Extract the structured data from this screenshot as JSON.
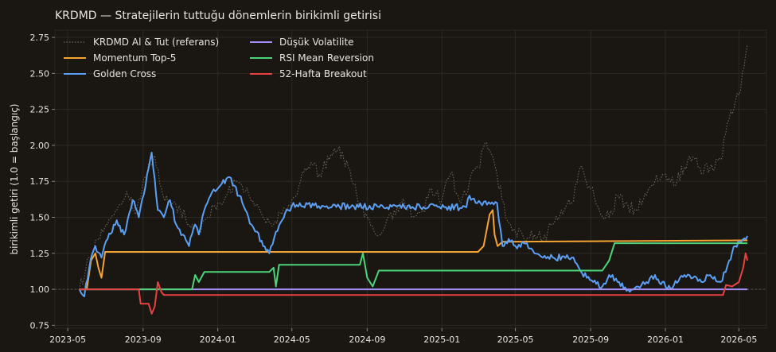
{
  "chart_data": {
    "type": "line",
    "title": "KRDMD — Stratejilerin tuttuğu dönemlerin birikimli getirisi",
    "xlabel": "",
    "ylabel": "birikimli getiri (1.0 = başlangıç)",
    "xlim": [
      "2023-04-10",
      "2026-06-15"
    ],
    "ylim": [
      0.73,
      2.8
    ],
    "yticks": [
      0.75,
      1.0,
      1.25,
      1.5,
      1.75,
      2.0,
      2.25,
      2.5,
      2.75
    ],
    "ytick_labels": [
      "0.75",
      "1.00",
      "1.25",
      "1.50",
      "1.75",
      "2.00",
      "2.25",
      "2.50",
      "2.75"
    ],
    "xticks": [
      "2023-05-01",
      "2023-09-01",
      "2024-01-01",
      "2024-05-01",
      "2024-09-01",
      "2025-01-01",
      "2025-05-01",
      "2025-09-01",
      "2026-01-01",
      "2026-05-01"
    ],
    "xtick_labels": [
      "2023-05",
      "2023-09",
      "2024-01",
      "2024-05",
      "2024-09",
      "2025-01",
      "2025-05",
      "2025-09",
      "2026-01",
      "2026-05"
    ],
    "grid": true,
    "legend_position": "top-left",
    "baseline": 1.0,
    "series": [
      {
        "name": "KRDMD Al & Tut (referans)",
        "color": "#6b645a",
        "style": "dotted",
        "x": [
          "2023-05-20",
          "2023-06-05",
          "2023-06-20",
          "2023-07-05",
          "2023-07-20",
          "2023-08-05",
          "2023-08-20",
          "2023-09-05",
          "2023-09-20",
          "2023-10-01",
          "2023-10-15",
          "2023-11-01",
          "2023-11-15",
          "2023-12-01",
          "2023-12-15",
          "2024-01-01",
          "2024-01-15",
          "2024-02-01",
          "2024-02-15",
          "2024-03-01",
          "2024-03-15",
          "2024-04-01",
          "2024-04-15",
          "2024-05-01",
          "2024-05-15",
          "2024-06-01",
          "2024-06-15",
          "2024-07-01",
          "2024-07-15",
          "2024-08-01",
          "2024-08-15",
          "2024-09-01",
          "2024-09-15",
          "2024-10-01",
          "2024-10-15",
          "2024-11-01",
          "2024-11-15",
          "2024-12-01",
          "2024-12-15",
          "2025-01-01",
          "2025-01-15",
          "2025-02-01",
          "2025-02-15",
          "2025-03-01",
          "2025-03-15",
          "2025-04-01",
          "2025-04-15",
          "2025-05-01",
          "2025-05-15",
          "2025-06-01",
          "2025-06-15",
          "2025-07-01",
          "2025-07-15",
          "2025-08-01",
          "2025-08-15",
          "2025-09-01",
          "2025-09-15",
          "2025-10-01",
          "2025-10-15",
          "2025-11-01",
          "2025-11-15",
          "2025-12-01",
          "2025-12-15",
          "2026-01-01",
          "2026-01-15",
          "2026-02-01",
          "2026-02-15",
          "2026-03-01",
          "2026-03-15",
          "2026-04-01",
          "2026-04-15",
          "2026-05-01",
          "2026-05-15"
        ],
        "y": [
          1.0,
          1.22,
          1.35,
          1.45,
          1.55,
          1.68,
          1.52,
          1.78,
          1.93,
          1.7,
          1.58,
          1.55,
          1.45,
          1.4,
          1.5,
          1.6,
          1.65,
          1.75,
          1.68,
          1.58,
          1.5,
          1.45,
          1.52,
          1.62,
          1.75,
          1.88,
          1.8,
          1.9,
          1.97,
          1.85,
          1.65,
          1.5,
          1.38,
          1.45,
          1.55,
          1.6,
          1.5,
          1.55,
          1.7,
          1.62,
          1.8,
          1.6,
          1.75,
          1.85,
          2.02,
          1.8,
          1.5,
          1.4,
          1.35,
          1.38,
          1.35,
          1.45,
          1.55,
          1.6,
          1.85,
          1.7,
          1.55,
          1.5,
          1.65,
          1.58,
          1.55,
          1.65,
          1.75,
          1.8,
          1.72,
          1.85,
          1.92,
          1.8,
          1.85,
          1.9,
          2.18,
          2.35,
          2.7
        ]
      },
      {
        "name": "Momentum Top-5",
        "color": "#f5a333",
        "style": "solid",
        "x": [
          "2023-05-20",
          "2023-06-01",
          "2023-06-08",
          "2023-06-15",
          "2023-06-20",
          "2023-06-25",
          "2023-07-01",
          "2025-03-01",
          "2025-03-10",
          "2025-03-20",
          "2025-03-25",
          "2025-03-28",
          "2025-04-02",
          "2025-04-10",
          "2026-05-15"
        ],
        "y": [
          1.0,
          1.0,
          1.2,
          1.25,
          1.15,
          1.08,
          1.26,
          1.26,
          1.3,
          1.52,
          1.55,
          1.38,
          1.3,
          1.33,
          1.34
        ]
      },
      {
        "name": "Golden Cross",
        "color": "#5b9ff5",
        "style": "solid",
        "x": [
          "2023-05-20",
          "2023-05-28",
          "2023-06-05",
          "2023-06-15",
          "2023-06-25",
          "2023-07-05",
          "2023-07-20",
          "2023-08-01",
          "2023-08-15",
          "2023-08-25",
          "2023-09-05",
          "2023-09-15",
          "2023-09-25",
          "2023-10-05",
          "2023-10-15",
          "2023-10-25",
          "2023-11-05",
          "2023-11-15",
          "2023-11-25",
          "2023-12-01",
          "2023-12-10",
          "2023-12-20",
          "2024-01-05",
          "2024-01-20",
          "2024-02-05",
          "2024-02-15",
          "2024-02-25",
          "2024-03-05",
          "2024-03-15",
          "2024-03-25",
          "2024-04-05",
          "2024-04-15",
          "2024-04-25",
          "2024-05-01",
          "2025-02-10",
          "2025-02-15",
          "2025-02-25",
          "2025-03-05",
          "2025-04-01",
          "2025-04-10",
          "2025-04-20",
          "2025-05-01",
          "2025-05-15",
          "2025-06-01",
          "2025-06-15",
          "2025-07-01",
          "2025-08-01",
          "2025-08-15",
          "2025-09-05",
          "2025-09-20",
          "2025-10-01",
          "2025-10-15",
          "2025-11-01",
          "2025-11-15",
          "2025-12-01",
          "2025-12-15",
          "2026-01-01",
          "2026-01-15",
          "2026-02-01",
          "2026-02-15",
          "2026-03-01",
          "2026-03-15",
          "2026-04-01",
          "2026-04-15",
          "2026-04-25",
          "2026-05-05",
          "2026-05-15"
        ],
        "y": [
          1.0,
          0.95,
          1.15,
          1.3,
          1.22,
          1.35,
          1.48,
          1.38,
          1.62,
          1.5,
          1.72,
          1.95,
          1.55,
          1.5,
          1.62,
          1.45,
          1.38,
          1.3,
          1.45,
          1.38,
          1.55,
          1.65,
          1.72,
          1.78,
          1.65,
          1.55,
          1.45,
          1.4,
          1.3,
          1.25,
          1.4,
          1.48,
          1.55,
          1.58,
          1.57,
          1.65,
          1.6,
          1.6,
          1.6,
          1.3,
          1.35,
          1.3,
          1.32,
          1.25,
          1.22,
          1.22,
          1.22,
          1.13,
          1.05,
          1.02,
          1.1,
          1.05,
          1.0,
          1.02,
          1.05,
          1.1,
          1.02,
          1.03,
          1.1,
          1.08,
          1.05,
          1.1,
          1.05,
          1.2,
          1.3,
          1.33,
          1.37
        ]
      },
      {
        "name": "Düşük Volatilite",
        "color": "#a28ef5",
        "style": "solid",
        "x": [
          "2023-05-20",
          "2026-05-15"
        ],
        "y": [
          1.0,
          1.0
        ]
      },
      {
        "name": "RSI Mean Reversion",
        "color": "#4cd47a",
        "style": "solid",
        "x": [
          "2023-05-20",
          "2023-11-20",
          "2023-11-25",
          "2023-12-01",
          "2023-12-10",
          "2024-03-25",
          "2024-04-01",
          "2024-04-05",
          "2024-04-10",
          "2024-08-20",
          "2024-08-25",
          "2024-09-01",
          "2024-09-10",
          "2024-09-20",
          "2025-09-20",
          "2025-10-01",
          "2025-10-10",
          "2026-05-15"
        ],
        "y": [
          1.0,
          1.0,
          1.1,
          1.05,
          1.12,
          1.12,
          1.15,
          1.02,
          1.17,
          1.17,
          1.25,
          1.08,
          1.02,
          1.13,
          1.13,
          1.2,
          1.32,
          1.32
        ]
      },
      {
        "name": "52-Hafta Breakout",
        "color": "#e84141",
        "style": "solid",
        "x": [
          "2023-05-20",
          "2023-08-25",
          "2023-08-28",
          "2023-09-10",
          "2023-09-15",
          "2023-09-20",
          "2023-09-25",
          "2023-10-01",
          "2023-10-05",
          "2026-04-05",
          "2026-04-10",
          "2026-04-20",
          "2026-05-01",
          "2026-05-08",
          "2026-05-12",
          "2026-05-15"
        ],
        "y": [
          1.0,
          1.0,
          0.9,
          0.9,
          0.83,
          0.88,
          1.05,
          0.98,
          0.96,
          0.96,
          1.03,
          1.02,
          1.05,
          1.15,
          1.25,
          1.2
        ]
      }
    ]
  }
}
